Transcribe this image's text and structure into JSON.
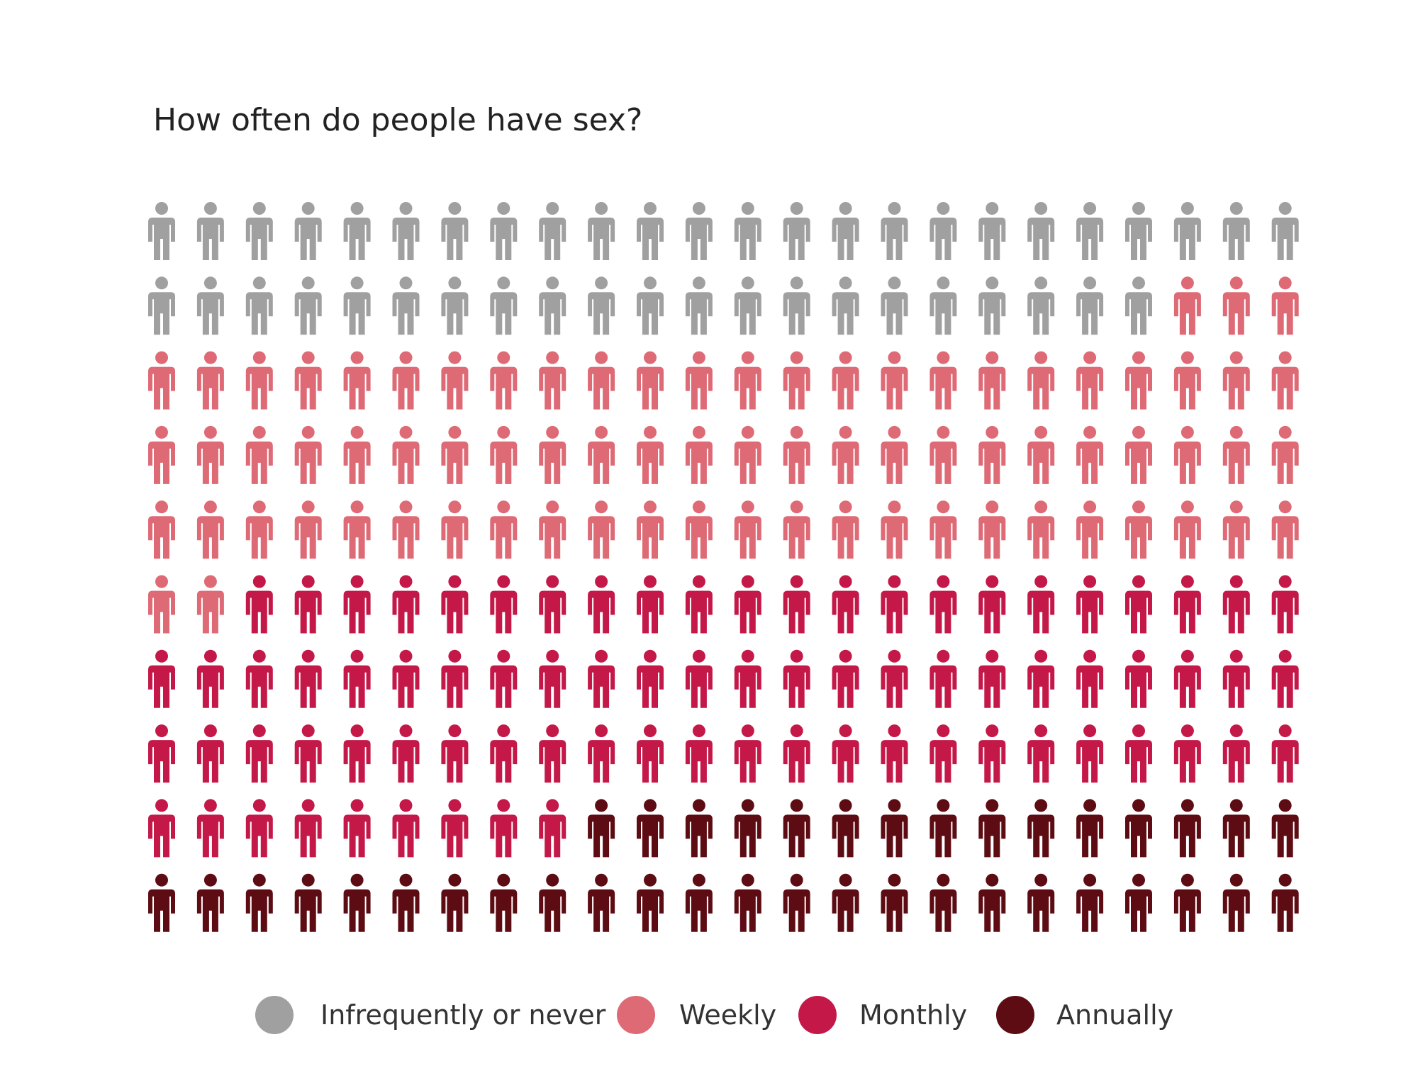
{
  "chart_data": {
    "type": "pictogram",
    "title": "How often do people have sex?",
    "total_icons": 240,
    "columns": 24,
    "rows": 10,
    "icon": "person-icon",
    "fill_order": "row-major",
    "series": [
      {
        "name": "Infrequently or never",
        "count": 45,
        "color": "#a0a0a0"
      },
      {
        "name": "Weekly",
        "count": 77,
        "color": "#de6a76"
      },
      {
        "name": "Monthly",
        "count": 79,
        "color": "#c41848"
      },
      {
        "name": "Annually",
        "count": 39,
        "color": "#5e0c14"
      }
    ],
    "legend_position": "bottom"
  }
}
